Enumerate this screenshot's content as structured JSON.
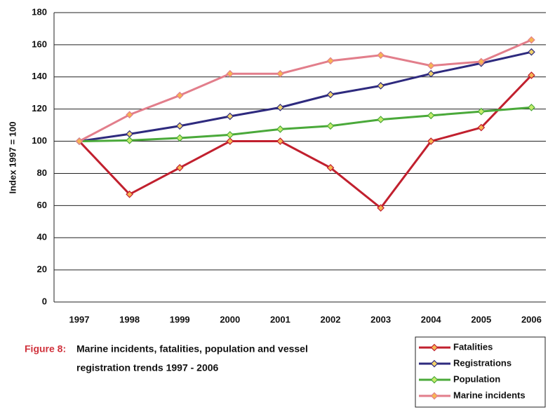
{
  "chart_data": {
    "type": "line",
    "y_label": "Index 1997 = 100",
    "categories": [
      "1997",
      "1998",
      "1999",
      "2000",
      "2001",
      "2002",
      "2003",
      "2004",
      "2005",
      "2006"
    ],
    "series": [
      {
        "name": "Fatalities",
        "color": "#c1202e",
        "marker_color": "#f7b653",
        "values": [
          100,
          67,
          83.5,
          100,
          100,
          83.5,
          58.5,
          100,
          108.5,
          141
        ]
      },
      {
        "name": "Registrations",
        "color": "#2e2a7e",
        "marker_color": "#f2d36b",
        "values": [
          100,
          104.5,
          109.5,
          115.5,
          121,
          129,
          134.5,
          142,
          148.5,
          155.5
        ]
      },
      {
        "name": "Population",
        "color": "#4aa93a",
        "marker_color": "#c4ec6a",
        "values": [
          100,
          100.5,
          102,
          104,
          107.5,
          109.5,
          113.5,
          116,
          118.5,
          121
        ]
      },
      {
        "name": "Marine incidents",
        "color": "#e27e8b",
        "marker_color": "#f7b653",
        "values": [
          100,
          116.5,
          128.5,
          142,
          142,
          150,
          153.5,
          147,
          149.5,
          163
        ]
      }
    ],
    "ylim": [
      0,
      180
    ],
    "yticks": [
      0,
      20,
      40,
      60,
      80,
      100,
      120,
      140,
      160,
      180
    ],
    "grid": true,
    "caption": {
      "label": "Figure 8:",
      "lines": [
        "Marine incidents, fatalities, population and vessel",
        "registration trends 1997 - 2006"
      ]
    },
    "legend": "bottom-right"
  }
}
